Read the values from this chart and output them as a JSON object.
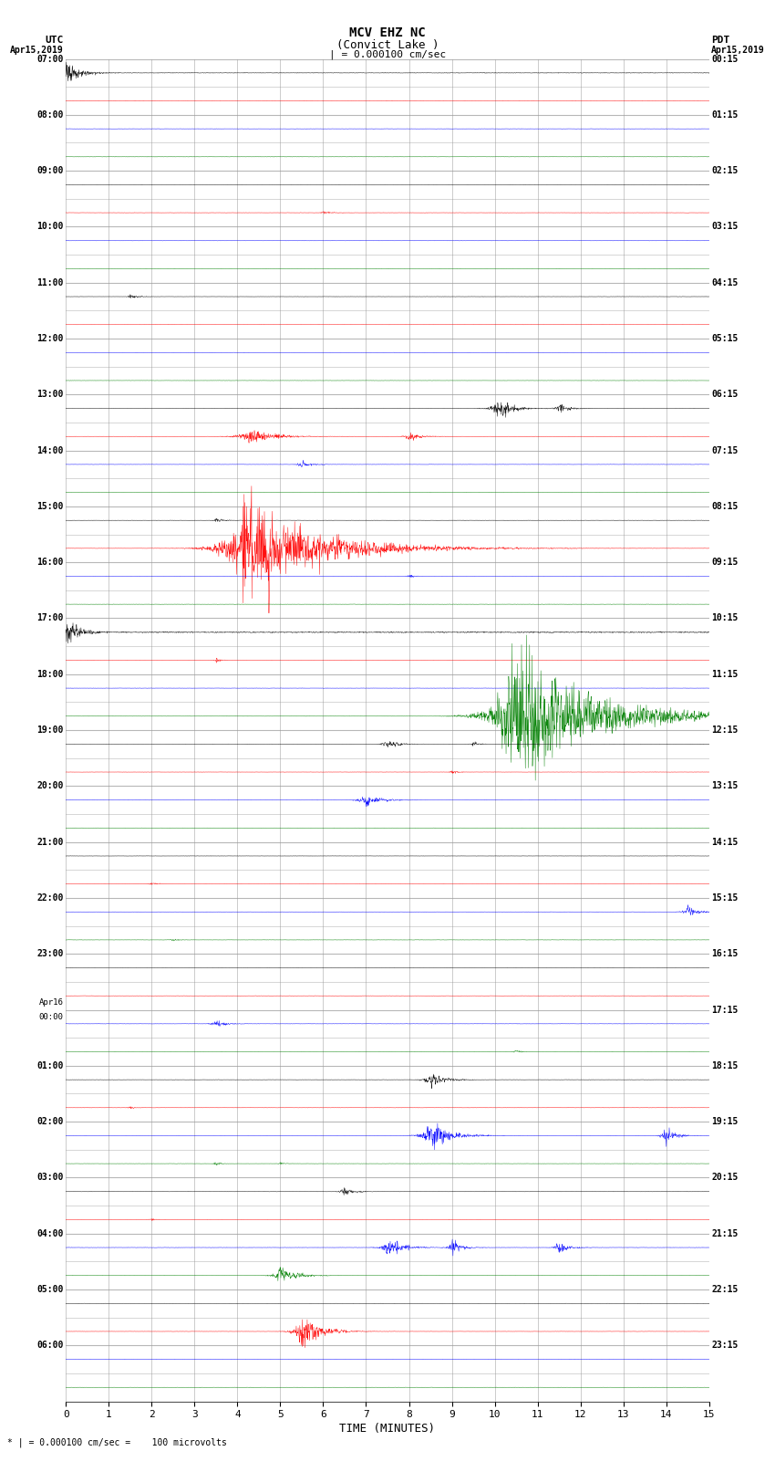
{
  "title_line1": "MCV EHZ NC",
  "title_line2": "(Convict Lake )",
  "scale_label": "| = 0.000100 cm/sec",
  "left_label_top": "UTC",
  "left_label_date": "Apr15,2019",
  "right_label_top": "PDT",
  "right_label_date": "Apr15,2019",
  "xlabel": "TIME (MINUTES)",
  "footer": "* | = 0.000100 cm/sec =    100 microvolts",
  "xlim": [
    0,
    15
  ],
  "xticks": [
    0,
    1,
    2,
    3,
    4,
    5,
    6,
    7,
    8,
    9,
    10,
    11,
    12,
    13,
    14,
    15
  ],
  "bg_color": "#ffffff",
  "grid_color": "#999999",
  "num_traces": 48,
  "utc_labels": [
    "07:00",
    "",
    "08:00",
    "",
    "09:00",
    "",
    "10:00",
    "",
    "11:00",
    "",
    "12:00",
    "",
    "13:00",
    "",
    "14:00",
    "",
    "15:00",
    "",
    "16:00",
    "",
    "17:00",
    "",
    "18:00",
    "",
    "19:00",
    "",
    "20:00",
    "",
    "21:00",
    "",
    "22:00",
    "",
    "23:00",
    "",
    "Apr16\n00:00",
    "",
    "01:00",
    "",
    "02:00",
    "",
    "03:00",
    "",
    "04:00",
    "",
    "05:00",
    "",
    "06:00",
    ""
  ],
  "pdt_labels": [
    "00:15",
    "",
    "01:15",
    "",
    "02:15",
    "",
    "03:15",
    "",
    "04:15",
    "",
    "05:15",
    "",
    "06:15",
    "",
    "07:15",
    "",
    "08:15",
    "",
    "09:15",
    "",
    "10:15",
    "",
    "11:15",
    "",
    "12:15",
    "",
    "13:15",
    "",
    "14:15",
    "",
    "15:15",
    "",
    "16:15",
    "",
    "17:15",
    "",
    "18:15",
    "",
    "19:15",
    "",
    "20:15",
    "",
    "21:15",
    "",
    "22:15",
    "",
    "23:15",
    ""
  ]
}
